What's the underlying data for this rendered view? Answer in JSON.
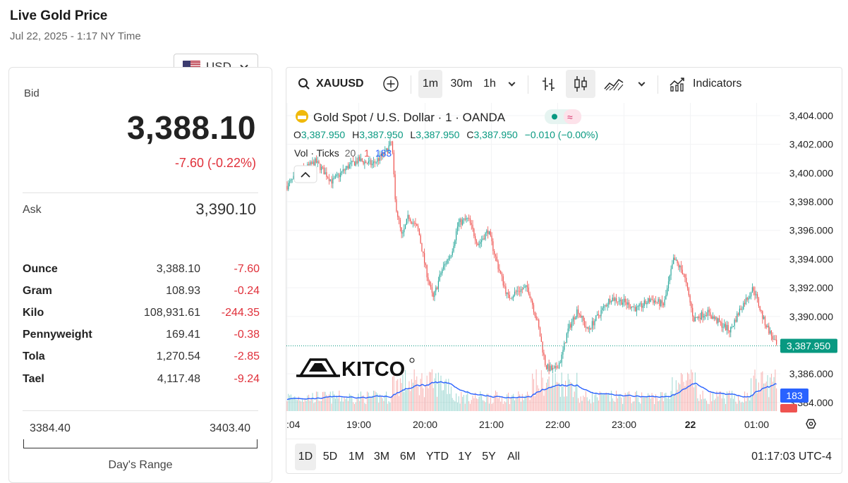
{
  "page": {
    "title": "Live Gold Price",
    "subtitle": "Jul 22, 2025 - 1:17 NY Time"
  },
  "currency": {
    "selected": "USD",
    "flag_icon": "us-flag-icon"
  },
  "quote": {
    "bid_label": "Bid",
    "bid": "3,388.10",
    "bid_change": "-7.60 (-0.22%)",
    "ask_label": "Ask",
    "ask": "3,390.10"
  },
  "units": [
    {
      "name": "Ounce",
      "price": "3,388.10",
      "change": "-7.60"
    },
    {
      "name": "Gram",
      "price": "108.93",
      "change": "-0.24"
    },
    {
      "name": "Kilo",
      "price": "108,931.61",
      "change": "-244.35"
    },
    {
      "name": "Pennyweight",
      "price": "169.41",
      "change": "-0.38"
    },
    {
      "name": "Tola",
      "price": "1,270.54",
      "change": "-2.85"
    },
    {
      "name": "Tael",
      "price": "4,117.48",
      "change": "-9.24"
    }
  ],
  "day_range": {
    "low": "3384.40",
    "high": "3403.40",
    "label": "Day's Range"
  },
  "toolbar": {
    "symbol": "XAUUSD",
    "intervals": [
      "1m",
      "30m",
      "1h"
    ],
    "active_interval": "1m",
    "indicators_label": "Indicators"
  },
  "legend": {
    "title": "Gold Spot / U.S. Dollar · 1 · OANDA",
    "o_label": "O",
    "o": "3,387.950",
    "h_label": "H",
    "h": "3,387.950",
    "l_label": "L",
    "l": "3,387.950",
    "c_label": "C",
    "c": "3,387.950",
    "change": "−0.010 (−0.00%)",
    "vol_label": "Vol · Ticks",
    "vol_a": "20",
    "vol_b": "1",
    "vol_c": "183"
  },
  "watermark": "KITCO",
  "bottom_bar": {
    "ranges": [
      "1D",
      "5D",
      "1M",
      "3M",
      "6M",
      "YTD",
      "1Y",
      "5Y",
      "All"
    ],
    "active_range": "1D",
    "clock": "01:17:03 UTC-4"
  },
  "colors": {
    "up": "#26a69a",
    "down": "#ef5350",
    "negative_text": "#e0303a",
    "volume_ma": "#2962ff",
    "last_price_tag": "#089981"
  },
  "chart_data": {
    "type": "candlestick",
    "series_name": "Gold Spot / U.S. Dollar",
    "x_ticks": [
      ":04",
      "19:00",
      "20:00",
      "21:00",
      "22:00",
      "23:00",
      "22",
      "01:00"
    ],
    "x_tick_times": [
      17.92,
      19.0,
      20.0,
      21.0,
      22.0,
      23.0,
      24.0,
      25.0
    ],
    "y_ticks": [
      "3,404.000",
      "3,402.000",
      "3,400.000",
      "3,398.000",
      "3,396.000",
      "3,394.000",
      "3,392.000",
      "3,390.000",
      "3,386.000",
      "3,384.000"
    ],
    "ylim": [
      3383.4,
      3404.0
    ],
    "x_range": [
      17.92,
      25.3
    ],
    "last_price": "3,387.950",
    "last_price_value": 3387.95,
    "volume_last": "183",
    "close_path": [
      [
        17.92,
        3399.1
      ],
      [
        18.1,
        3400.0
      ],
      [
        18.35,
        3400.8
      ],
      [
        18.6,
        3399.4
      ],
      [
        18.85,
        3400.5
      ],
      [
        19.0,
        3400.9
      ],
      [
        19.2,
        3400.6
      ],
      [
        19.4,
        3401.4
      ],
      [
        19.5,
        3402.2
      ],
      [
        19.55,
        3398.0
      ],
      [
        19.65,
        3395.5
      ],
      [
        19.75,
        3397.0
      ],
      [
        19.9,
        3396.0
      ],
      [
        20.0,
        3393.5
      ],
      [
        20.12,
        3391.2
      ],
      [
        20.25,
        3393.2
      ],
      [
        20.4,
        3394.5
      ],
      [
        20.5,
        3396.5
      ],
      [
        20.65,
        3396.8
      ],
      [
        20.8,
        3395.0
      ],
      [
        20.95,
        3396.0
      ],
      [
        21.1,
        3393.5
      ],
      [
        21.25,
        3391.3
      ],
      [
        21.4,
        3391.8
      ],
      [
        21.55,
        3392.0
      ],
      [
        21.7,
        3389.5
      ],
      [
        21.82,
        3386.5
      ],
      [
        21.95,
        3386.2
      ],
      [
        22.05,
        3387.0
      ],
      [
        22.15,
        3389.0
      ],
      [
        22.3,
        3390.5
      ],
      [
        22.45,
        3389.0
      ],
      [
        22.6,
        3390.0
      ],
      [
        22.8,
        3391.3
      ],
      [
        23.0,
        3391.0
      ],
      [
        23.2,
        3390.5
      ],
      [
        23.4,
        3391.2
      ],
      [
        23.6,
        3390.8
      ],
      [
        23.75,
        3394.0
      ],
      [
        23.9,
        3393.0
      ],
      [
        24.05,
        3389.8
      ],
      [
        24.25,
        3390.3
      ],
      [
        24.45,
        3389.5
      ],
      [
        24.6,
        3389.0
      ],
      [
        24.75,
        3390.5
      ],
      [
        24.95,
        3392.0
      ],
      [
        25.1,
        3389.8
      ],
      [
        25.3,
        3387.95
      ]
    ]
  }
}
